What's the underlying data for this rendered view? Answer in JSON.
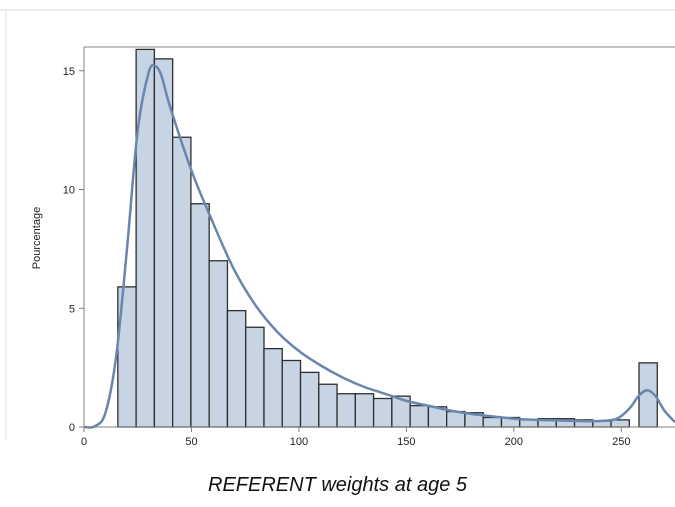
{
  "caption": "REFERENT weights at age 5",
  "chart_data": {
    "type": "bar",
    "title": "",
    "xlabel": "",
    "ylabel": "Pourcentage",
    "xlim": [
      0,
      275
    ],
    "ylim": [
      0,
      16
    ],
    "x_ticks": [
      0,
      50,
      100,
      150,
      200,
      250
    ],
    "y_ticks": [
      0,
      5,
      10,
      15
    ],
    "bin_width": 8.5,
    "bins": [
      {
        "x": 20,
        "y": 5.9
      },
      {
        "x": 28.5,
        "y": 15.9
      },
      {
        "x": 37,
        "y": 15.5
      },
      {
        "x": 45.5,
        "y": 12.2
      },
      {
        "x": 54,
        "y": 9.4
      },
      {
        "x": 62.5,
        "y": 7.0
      },
      {
        "x": 71,
        "y": 4.9
      },
      {
        "x": 79.5,
        "y": 4.2
      },
      {
        "x": 88,
        "y": 3.3
      },
      {
        "x": 96.5,
        "y": 2.8
      },
      {
        "x": 105,
        "y": 2.3
      },
      {
        "x": 113.5,
        "y": 1.8
      },
      {
        "x": 122,
        "y": 1.4
      },
      {
        "x": 130.5,
        "y": 1.4
      },
      {
        "x": 139,
        "y": 1.2
      },
      {
        "x": 147.5,
        "y": 1.3
      },
      {
        "x": 156,
        "y": 0.9
      },
      {
        "x": 164.5,
        "y": 0.85
      },
      {
        "x": 173,
        "y": 0.65
      },
      {
        "x": 181.5,
        "y": 0.6
      },
      {
        "x": 190,
        "y": 0.4
      },
      {
        "x": 198.5,
        "y": 0.4
      },
      {
        "x": 207,
        "y": 0.3
      },
      {
        "x": 215.5,
        "y": 0.35
      },
      {
        "x": 224,
        "y": 0.35
      },
      {
        "x": 232.5,
        "y": 0.3
      },
      {
        "x": 241,
        "y": 0.25
      },
      {
        "x": 249.5,
        "y": 0.3
      },
      {
        "x": 262.5,
        "y": 2.7
      }
    ],
    "density_curve": [
      [
        0,
        0
      ],
      [
        5,
        0.03
      ],
      [
        10,
        0.6
      ],
      [
        15,
        3.0
      ],
      [
        20,
        7.5
      ],
      [
        25,
        12.5
      ],
      [
        30,
        14.9
      ],
      [
        33,
        15.2
      ],
      [
        36,
        14.8
      ],
      [
        40,
        13.5
      ],
      [
        50,
        10.8
      ],
      [
        60,
        8.6
      ],
      [
        70,
        6.6
      ],
      [
        80,
        5.1
      ],
      [
        90,
        4.0
      ],
      [
        100,
        3.2
      ],
      [
        110,
        2.6
      ],
      [
        120,
        2.1
      ],
      [
        130,
        1.7
      ],
      [
        140,
        1.4
      ],
      [
        150,
        1.1
      ],
      [
        160,
        0.9
      ],
      [
        170,
        0.7
      ],
      [
        180,
        0.55
      ],
      [
        190,
        0.45
      ],
      [
        200,
        0.35
      ],
      [
        210,
        0.3
      ],
      [
        220,
        0.28
      ],
      [
        230,
        0.25
      ],
      [
        240,
        0.25
      ],
      [
        248,
        0.35
      ],
      [
        254,
        0.8
      ],
      [
        258,
        1.3
      ],
      [
        262,
        1.55
      ],
      [
        266,
        1.3
      ],
      [
        270,
        0.7
      ],
      [
        275,
        0.2
      ]
    ],
    "bar_fill": "#c7d4e4",
    "bar_stroke": "#2e2e2e",
    "curve_color": "#6b86ad",
    "axis_color": "#808080",
    "grid": false
  }
}
